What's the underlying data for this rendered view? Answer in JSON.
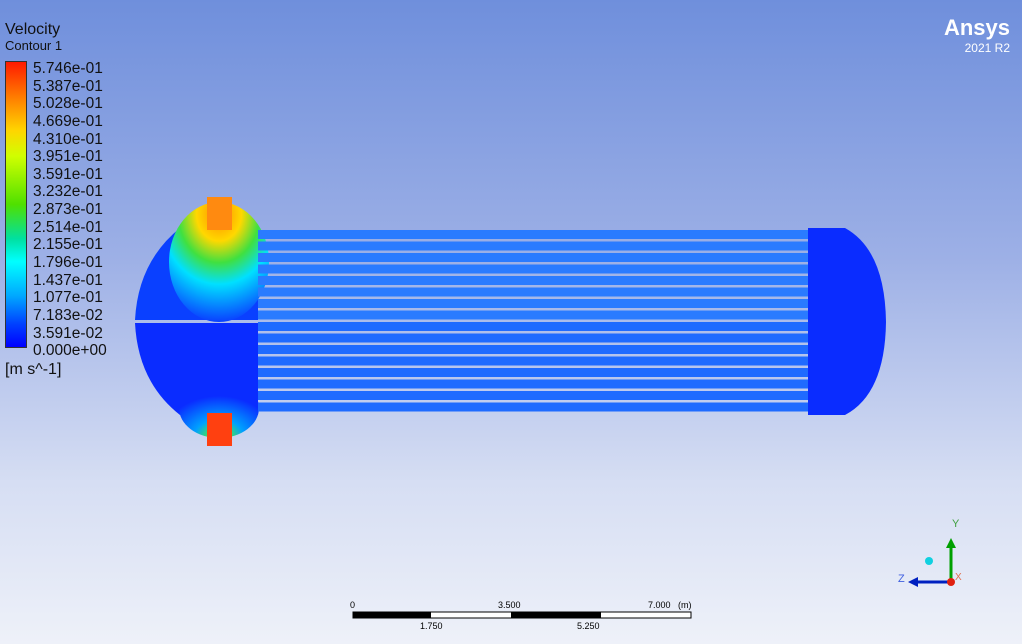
{
  "legend": {
    "title": "Velocity",
    "subtitle": "Contour 1",
    "unit": "[m s^-1]",
    "ticks": [
      "5.746e-01",
      "5.387e-01",
      "5.028e-01",
      "4.669e-01",
      "4.310e-01",
      "3.951e-01",
      "3.591e-01",
      "3.232e-01",
      "2.873e-01",
      "2.514e-01",
      "2.155e-01",
      "1.796e-01",
      "1.437e-01",
      "1.077e-01",
      "7.183e-02",
      "3.591e-02",
      "0.000e+00"
    ]
  },
  "brand": {
    "name": "Ansys",
    "version": "2021 R2"
  },
  "scale": {
    "labels_top": [
      "0",
      "3.500",
      "7.000"
    ],
    "unit": "(m)",
    "labels_bottom": [
      "1.750",
      "5.250"
    ]
  },
  "axes": {
    "x": "X",
    "y": "Y",
    "z": "Z"
  },
  "colors": {
    "low": "#0000ff",
    "high": "#ff1a00",
    "tube": "#1f6bff"
  }
}
